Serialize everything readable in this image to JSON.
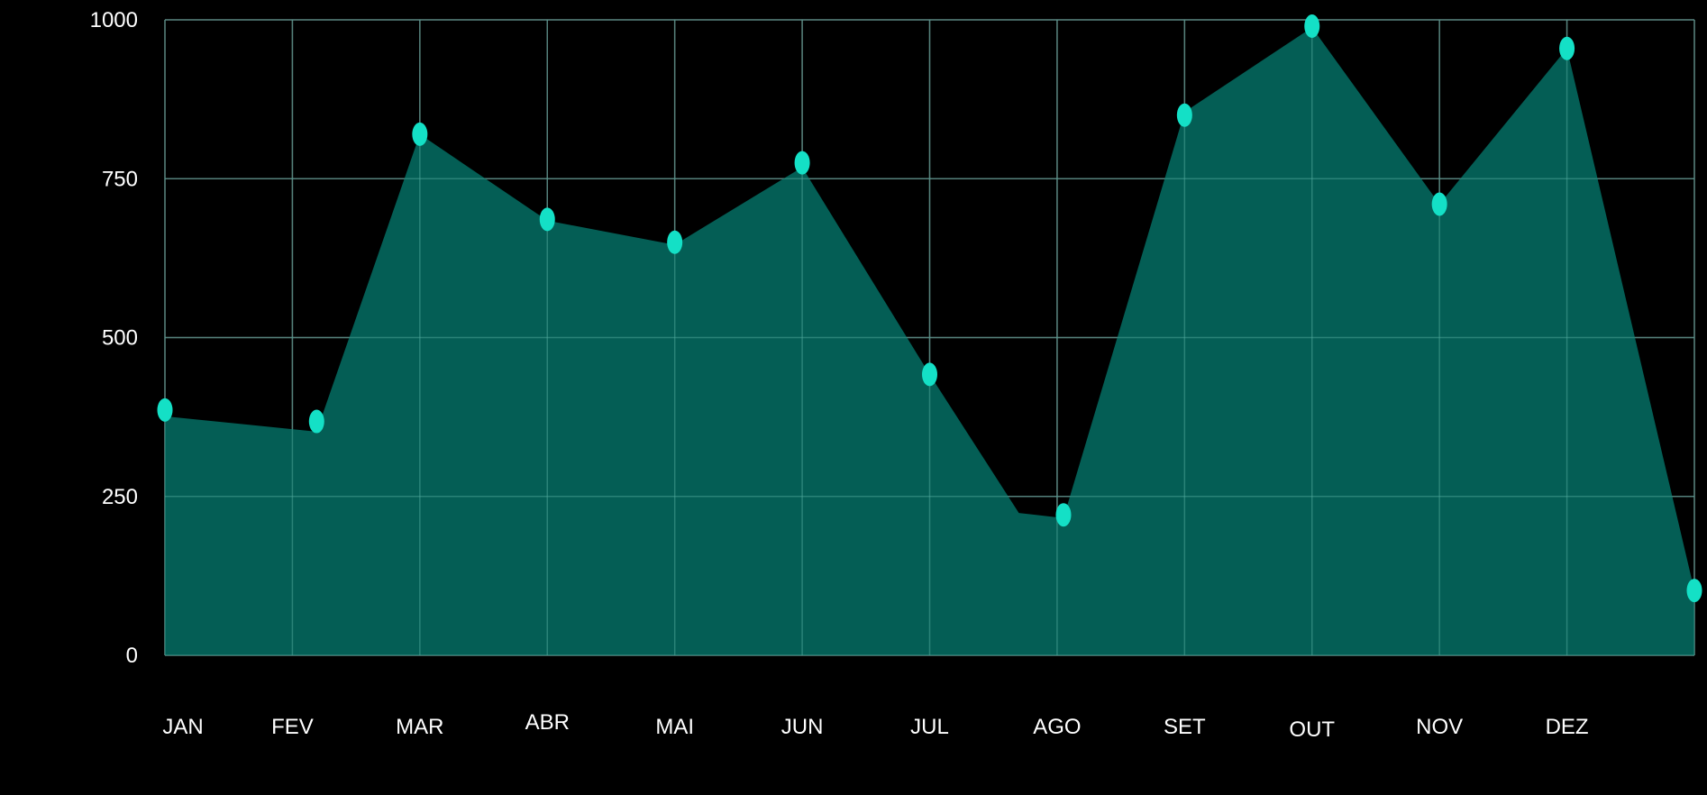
{
  "chart_data": {
    "type": "area",
    "categories": [
      "JAN",
      "FEV",
      "MAR",
      "ABR",
      "MAI",
      "JUN",
      "JUL",
      "AGO",
      "SET",
      "OUT",
      "NOV",
      "DEZ"
    ],
    "series": [
      {
        "x": [
          0,
          1.19,
          2,
          3,
          4,
          5,
          6,
          6.7,
          7.05,
          8,
          9,
          10,
          11,
          12
        ],
        "values": [
          376,
          352,
          820,
          684,
          646,
          768,
          442,
          224,
          216,
          855,
          988,
          710,
          955,
          102
        ]
      }
    ],
    "points": [
      {
        "x": 0,
        "y": 386
      },
      {
        "x": 1.19,
        "y": 368
      },
      {
        "x": 2,
        "y": 820
      },
      {
        "x": 3,
        "y": 686
      },
      {
        "x": 4,
        "y": 650
      },
      {
        "x": 5,
        "y": 775
      },
      {
        "x": 6,
        "y": 442
      },
      {
        "x": 7.05,
        "y": 221
      },
      {
        "x": 8,
        "y": 850
      },
      {
        "x": 9,
        "y": 990
      },
      {
        "x": 10,
        "y": 710
      },
      {
        "x": 11,
        "y": 955
      },
      {
        "x": 12,
        "y": 102
      }
    ],
    "yticks": [
      "0",
      "250",
      "500",
      "750",
      "1000"
    ],
    "ylim": [
      0,
      1000
    ],
    "xlim": [
      0,
      12
    ],
    "grid": true,
    "colors": {
      "background": "#000000",
      "area_fill": "#045E55",
      "marker": "#14E0C6",
      "grid": "#5A5A5A",
      "text": "#FFFFFF"
    }
  }
}
